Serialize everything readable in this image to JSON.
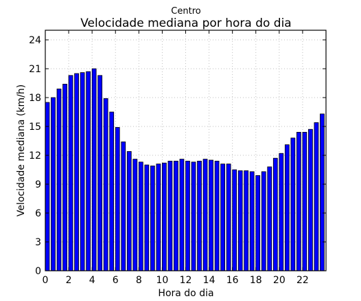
{
  "chart_data": {
    "type": "bar",
    "title": "Velocidade mediana por hora do dia",
    "subtitle": "Centro",
    "xlabel": "Hora do dia",
    "ylabel": "Velocidade mediana (km/h)",
    "xlim": [
      0,
      24
    ],
    "ylim": [
      0,
      25
    ],
    "grid": true,
    "bar_color": "#0000ff",
    "bar_edge_color": "#000000",
    "x_ticks": [
      0,
      2,
      4,
      6,
      8,
      10,
      12,
      14,
      16,
      18,
      20,
      22
    ],
    "y_ticks": [
      0,
      3,
      6,
      9,
      12,
      15,
      18,
      21,
      24
    ],
    "x_tick_labels": [
      "0",
      "2",
      "4",
      "6",
      "8",
      "10",
      "12",
      "14",
      "16",
      "18",
      "20",
      "22"
    ],
    "y_tick_labels": [
      "0",
      "3",
      "6",
      "9",
      "12",
      "15",
      "18",
      "21",
      "24"
    ],
    "bar_width": 0.35,
    "x": [
      0.0,
      0.5,
      1.0,
      1.5,
      2.0,
      2.5,
      3.0,
      3.5,
      4.0,
      4.5,
      5.0,
      5.5,
      6.0,
      6.5,
      7.0,
      7.5,
      8.0,
      8.5,
      9.0,
      9.5,
      10.0,
      10.5,
      11.0,
      11.5,
      12.0,
      12.5,
      13.0,
      13.5,
      14.0,
      14.5,
      15.0,
      15.5,
      16.0,
      16.5,
      17.0,
      17.5,
      18.0,
      18.5,
      19.0,
      19.5,
      20.0,
      20.5,
      21.0,
      21.5,
      22.0,
      22.5,
      23.0,
      23.5
    ],
    "values": [
      17.5,
      18.0,
      18.9,
      19.4,
      20.3,
      20.5,
      20.6,
      20.7,
      21.0,
      20.3,
      17.9,
      16.5,
      14.9,
      13.4,
      12.4,
      11.6,
      11.3,
      11.0,
      10.9,
      11.1,
      11.2,
      11.4,
      11.4,
      11.6,
      11.4,
      11.3,
      11.4,
      11.6,
      11.5,
      11.4,
      11.1,
      11.1,
      10.5,
      10.4,
      10.4,
      10.3,
      9.9,
      10.3,
      10.8,
      11.7,
      12.2,
      13.1,
      13.8,
      14.4,
      14.4,
      14.7,
      15.4,
      16.3
    ]
  }
}
